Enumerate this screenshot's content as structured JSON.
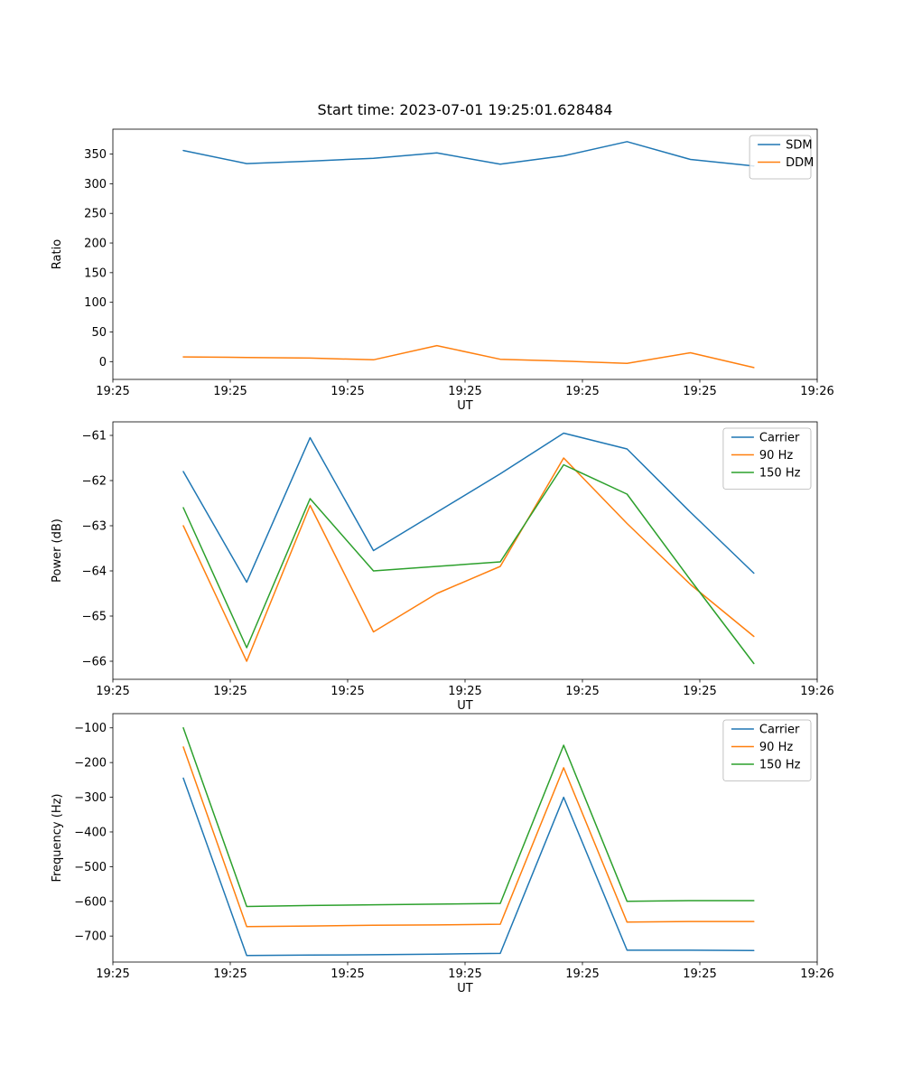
{
  "figure": {
    "title": "Start time: 2023-07-01 19:25:01.628484",
    "background": "#ffffff"
  },
  "colors": {
    "blue": "#1f77b4",
    "orange": "#ff7f0e",
    "green": "#2ca02c"
  },
  "chart_data": [
    {
      "type": "line",
      "title": "",
      "xlabel": "UT",
      "ylabel": "Ratio",
      "xlim": [
        0,
        60
      ],
      "ylim": [
        -30,
        392
      ],
      "xticks": [
        0,
        10,
        20,
        30,
        40,
        50,
        60
      ],
      "xtick_labels": [
        "19:25",
        "19:25",
        "19:25",
        "19:25",
        "19:25",
        "19:25",
        "19:26"
      ],
      "yticks": [
        0,
        50,
        100,
        150,
        200,
        250,
        300,
        350
      ],
      "grid": false,
      "legend_position": "top-right",
      "x": [
        6,
        11.4,
        16.8,
        22.2,
        27.6,
        33,
        38.4,
        43.8,
        49.2,
        54.6
      ],
      "series": [
        {
          "name": "SDM",
          "color": "#1f77b4",
          "values": [
            356,
            334,
            338,
            343,
            352,
            333,
            347,
            371,
            341,
            330
          ]
        },
        {
          "name": "DDM",
          "color": "#ff7f0e",
          "values": [
            8,
            7,
            6,
            3,
            27,
            4,
            1,
            -3,
            15,
            -10
          ]
        }
      ]
    },
    {
      "type": "line",
      "title": "",
      "xlabel": "UT",
      "ylabel": "Power (dB)",
      "xlim": [
        0,
        60
      ],
      "ylim": [
        -66.4,
        -60.7
      ],
      "xticks": [
        0,
        10,
        20,
        30,
        40,
        50,
        60
      ],
      "xtick_labels": [
        "19:25",
        "19:25",
        "19:25",
        "19:25",
        "19:25",
        "19:25",
        "19:26"
      ],
      "yticks": [
        -61,
        -62,
        -63,
        -64,
        -65,
        -66
      ],
      "grid": false,
      "legend_position": "top-right",
      "x": [
        6,
        11.4,
        16.8,
        22.2,
        27.6,
        33,
        38.4,
        43.8,
        49.2,
        54.6
      ],
      "series": [
        {
          "name": "Carrier",
          "color": "#1f77b4",
          "values": [
            -61.8,
            -64.25,
            -61.05,
            -63.55,
            -62.7,
            -61.85,
            -60.95,
            -61.3,
            -62.7,
            -64.05
          ]
        },
        {
          "name": "90 Hz",
          "color": "#ff7f0e",
          "values": [
            -63.0,
            -66.0,
            -62.55,
            -65.35,
            -64.5,
            -63.9,
            -61.5,
            -62.95,
            -64.3,
            -65.45
          ]
        },
        {
          "name": "150 Hz",
          "color": "#2ca02c",
          "values": [
            -62.6,
            -65.7,
            -62.4,
            -64.0,
            -63.9,
            -63.8,
            -61.65,
            -62.3,
            -64.2,
            -66.05
          ]
        }
      ]
    },
    {
      "type": "line",
      "title": "",
      "xlabel": "UT",
      "ylabel": "Frequency (Hz)",
      "xlim": [
        0,
        60
      ],
      "ylim": [
        -775,
        -59
      ],
      "xticks": [
        0,
        10,
        20,
        30,
        40,
        50,
        60
      ],
      "xtick_labels": [
        "19:25",
        "19:25",
        "19:25",
        "19:25",
        "19:25",
        "19:25",
        "19:26"
      ],
      "yticks": [
        -100,
        -200,
        -300,
        -400,
        -500,
        -600,
        -700
      ],
      "grid": false,
      "legend_position": "top-right",
      "x": [
        6,
        11.4,
        16.8,
        22.2,
        27.6,
        33,
        38.4,
        43.8,
        49.2,
        54.6
      ],
      "series": [
        {
          "name": "Carrier",
          "color": "#1f77b4",
          "values": [
            -245,
            -756,
            -755,
            -754,
            -752,
            -750,
            -300,
            -741,
            -741,
            -742
          ]
        },
        {
          "name": "90 Hz",
          "color": "#ff7f0e",
          "values": [
            -155,
            -673,
            -671,
            -669,
            -668,
            -666,
            -215,
            -660,
            -658,
            -658
          ]
        },
        {
          "name": "150 Hz",
          "color": "#2ca02c",
          "values": [
            -100,
            -615,
            -612,
            -610,
            -608,
            -606,
            -150,
            -600,
            -598,
            -598
          ]
        }
      ]
    }
  ]
}
